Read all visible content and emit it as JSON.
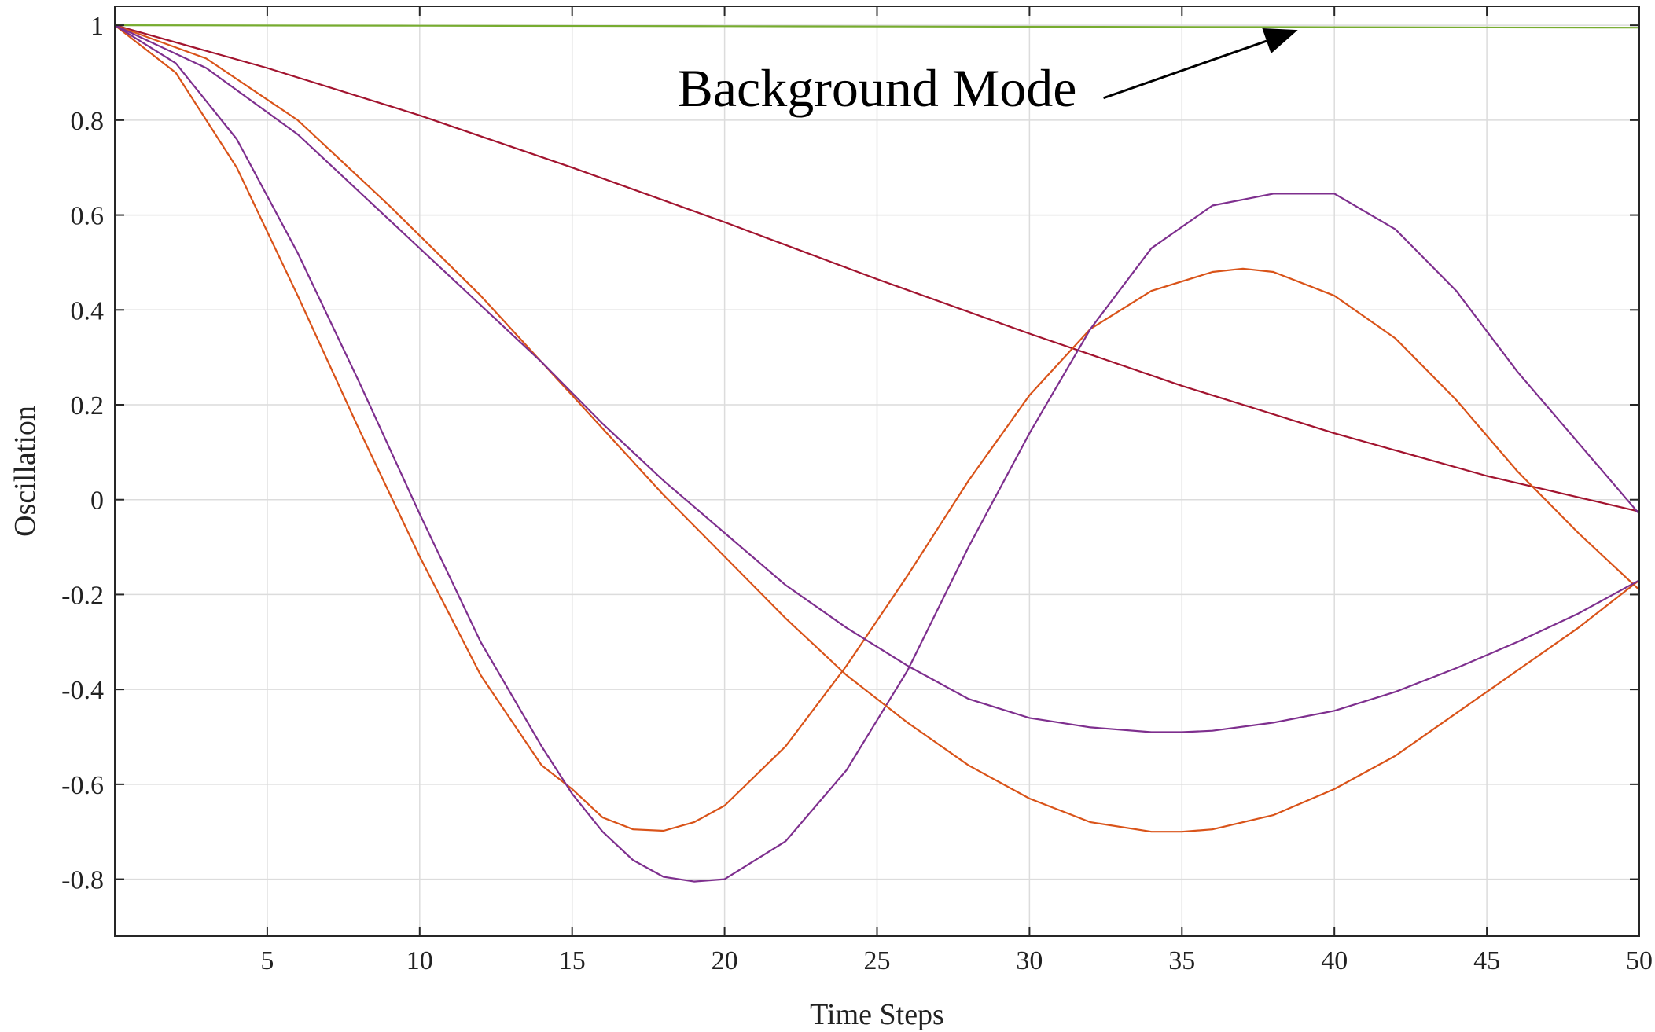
{
  "chart_data": {
    "type": "line",
    "title": "",
    "xlabel": "Time Steps",
    "ylabel": "Oscillation",
    "xlim": [
      0,
      50
    ],
    "ylim": [
      -0.92,
      1.04
    ],
    "xticks": [
      5,
      10,
      15,
      20,
      25,
      30,
      35,
      40,
      45,
      50
    ],
    "xtick_labels": [
      "5",
      "10",
      "15",
      "20",
      "25",
      "30",
      "35",
      "40",
      "45",
      "50"
    ],
    "yticks": [
      1,
      0.8,
      0.6,
      0.4,
      0.2,
      0,
      -0.2,
      -0.4,
      -0.6,
      -0.8
    ],
    "ytick_labels": [
      "1",
      "0.8",
      "0.6",
      "0.4",
      "0.2",
      "0",
      "-0.2",
      "-0.4",
      "-0.6",
      "-0.8"
    ],
    "grid": true,
    "annotation": {
      "text": "Background Mode",
      "x": 25,
      "y": 0.83,
      "arrow_to_x": 38.8,
      "arrow_to_y": 0.99
    },
    "series": [
      {
        "color": "#77ac30",
        "x": [
          0,
          10,
          20,
          30,
          40,
          50
        ],
        "y": [
          1.0,
          0.999,
          0.998,
          0.997,
          0.996,
          0.995
        ]
      },
      {
        "color": "#a2142f",
        "x": [
          0,
          5,
          10,
          15,
          20,
          25,
          30,
          35,
          40,
          45,
          50
        ],
        "y": [
          1.0,
          0.91,
          0.81,
          0.7,
          0.585,
          0.465,
          0.35,
          0.24,
          0.14,
          0.05,
          -0.025
        ]
      },
      {
        "color": "#d95319",
        "x": [
          0,
          2,
          4,
          6,
          8,
          10,
          12,
          14,
          15,
          16,
          17,
          18,
          19,
          20,
          22,
          24,
          26,
          28,
          30,
          32,
          34,
          36,
          37,
          38,
          40,
          42,
          44,
          46,
          48,
          50
        ],
        "y": [
          1.0,
          0.9,
          0.7,
          0.43,
          0.15,
          -0.12,
          -0.37,
          -0.56,
          -0.61,
          -0.67,
          -0.695,
          -0.698,
          -0.68,
          -0.645,
          -0.52,
          -0.35,
          -0.16,
          0.04,
          0.22,
          0.36,
          0.44,
          0.48,
          0.487,
          0.48,
          0.43,
          0.34,
          0.21,
          0.06,
          -0.07,
          -0.19
        ]
      },
      {
        "color": "#7e2f8e",
        "x": [
          0,
          2,
          4,
          6,
          8,
          10,
          12,
          14,
          15,
          16,
          17,
          18,
          19,
          20,
          22,
          24,
          26,
          28,
          30,
          32,
          34,
          36,
          38,
          40,
          42,
          44,
          46,
          48,
          50
        ],
        "y": [
          1.0,
          0.92,
          0.76,
          0.52,
          0.25,
          -0.03,
          -0.3,
          -0.52,
          -0.62,
          -0.7,
          -0.76,
          -0.795,
          -0.805,
          -0.8,
          -0.72,
          -0.57,
          -0.36,
          -0.1,
          0.14,
          0.36,
          0.53,
          0.62,
          0.645,
          0.645,
          0.57,
          0.44,
          0.27,
          0.12,
          -0.03
        ]
      },
      {
        "color": "#d95319",
        "x": [
          0,
          3,
          6,
          9,
          12,
          14,
          16,
          18,
          20,
          22,
          24,
          26,
          28,
          30,
          32,
          34,
          35,
          36,
          38,
          40,
          42,
          44,
          46,
          48,
          50
        ],
        "y": [
          1.0,
          0.93,
          0.8,
          0.62,
          0.43,
          0.29,
          0.15,
          0.01,
          -0.12,
          -0.25,
          -0.37,
          -0.47,
          -0.56,
          -0.63,
          -0.68,
          -0.7,
          -0.7,
          -0.695,
          -0.665,
          -0.61,
          -0.54,
          -0.45,
          -0.36,
          -0.27,
          -0.17
        ]
      },
      {
        "color": "#7e2f8e",
        "x": [
          0,
          3,
          6,
          9,
          12,
          14,
          16,
          18,
          20,
          22,
          24,
          26,
          28,
          30,
          32,
          34,
          35,
          36,
          38,
          40,
          42,
          44,
          46,
          48,
          50
        ],
        "y": [
          1.0,
          0.91,
          0.77,
          0.59,
          0.41,
          0.29,
          0.16,
          0.04,
          -0.07,
          -0.18,
          -0.27,
          -0.35,
          -0.42,
          -0.46,
          -0.48,
          -0.49,
          -0.49,
          -0.487,
          -0.47,
          -0.445,
          -0.405,
          -0.355,
          -0.3,
          -0.24,
          -0.17
        ]
      }
    ]
  }
}
